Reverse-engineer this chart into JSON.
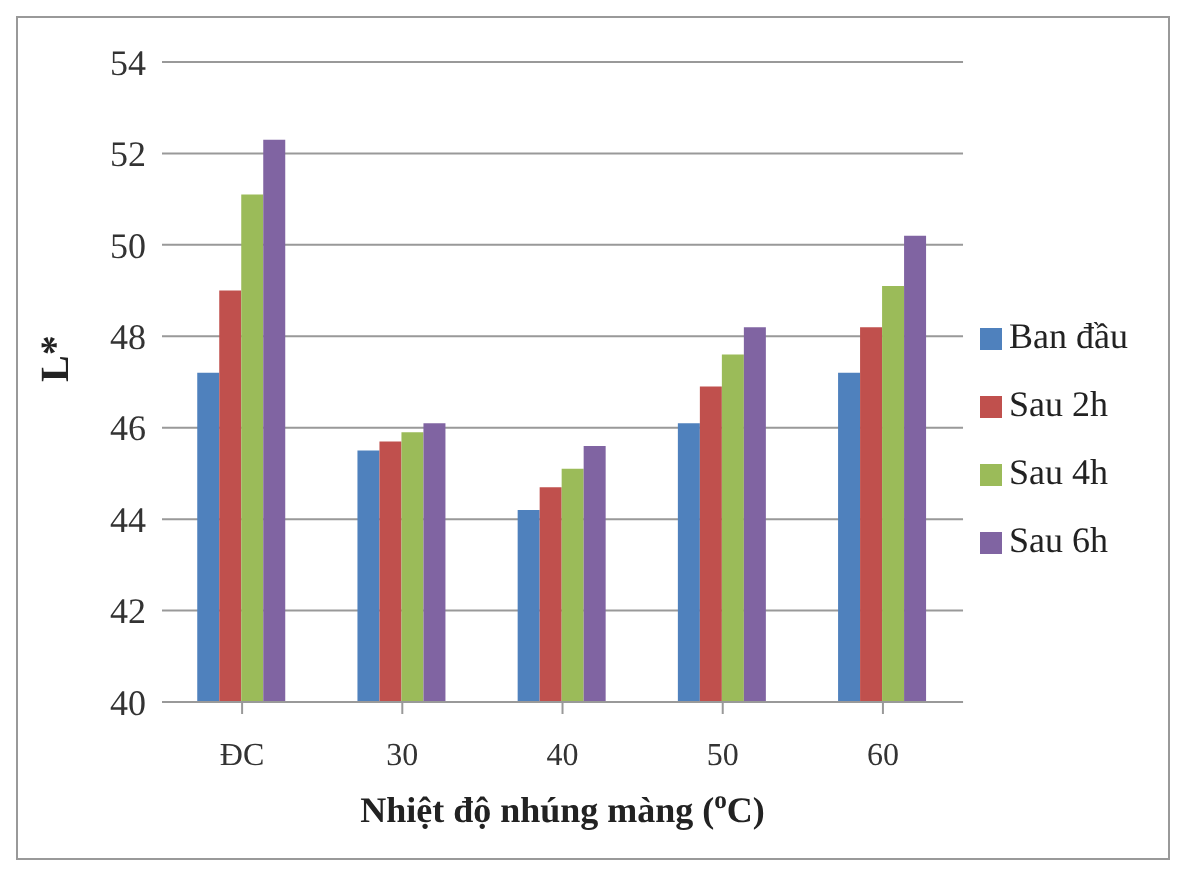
{
  "chart_data": {
    "type": "bar",
    "xlabel": "Nhiệt độ nhúng màng ($^{o}$C)",
    "ylabel": "L*",
    "categories": [
      "ĐC",
      "30",
      "40",
      "50",
      "60"
    ],
    "series": [
      {
        "name": "Ban đầu",
        "color": "#4f81bd",
        "values": [
          47.2,
          45.5,
          44.2,
          46.1,
          47.2
        ]
      },
      {
        "name": "Sau 2h",
        "color": "#c0504d",
        "values": [
          49.0,
          45.7,
          44.7,
          46.9,
          48.2
        ]
      },
      {
        "name": "Sau 4h",
        "color": "#9bbb59",
        "values": [
          51.1,
          45.9,
          45.1,
          47.6,
          49.1
        ]
      },
      {
        "name": "Sau 6h",
        "color": "#8064a2",
        "values": [
          52.3,
          46.1,
          45.6,
          48.2,
          50.2
        ]
      }
    ],
    "ylim": [
      40,
      54
    ],
    "yticks": [
      40,
      42,
      44,
      46,
      48,
      50,
      52,
      54
    ],
    "grid": "y",
    "legend": "right"
  }
}
